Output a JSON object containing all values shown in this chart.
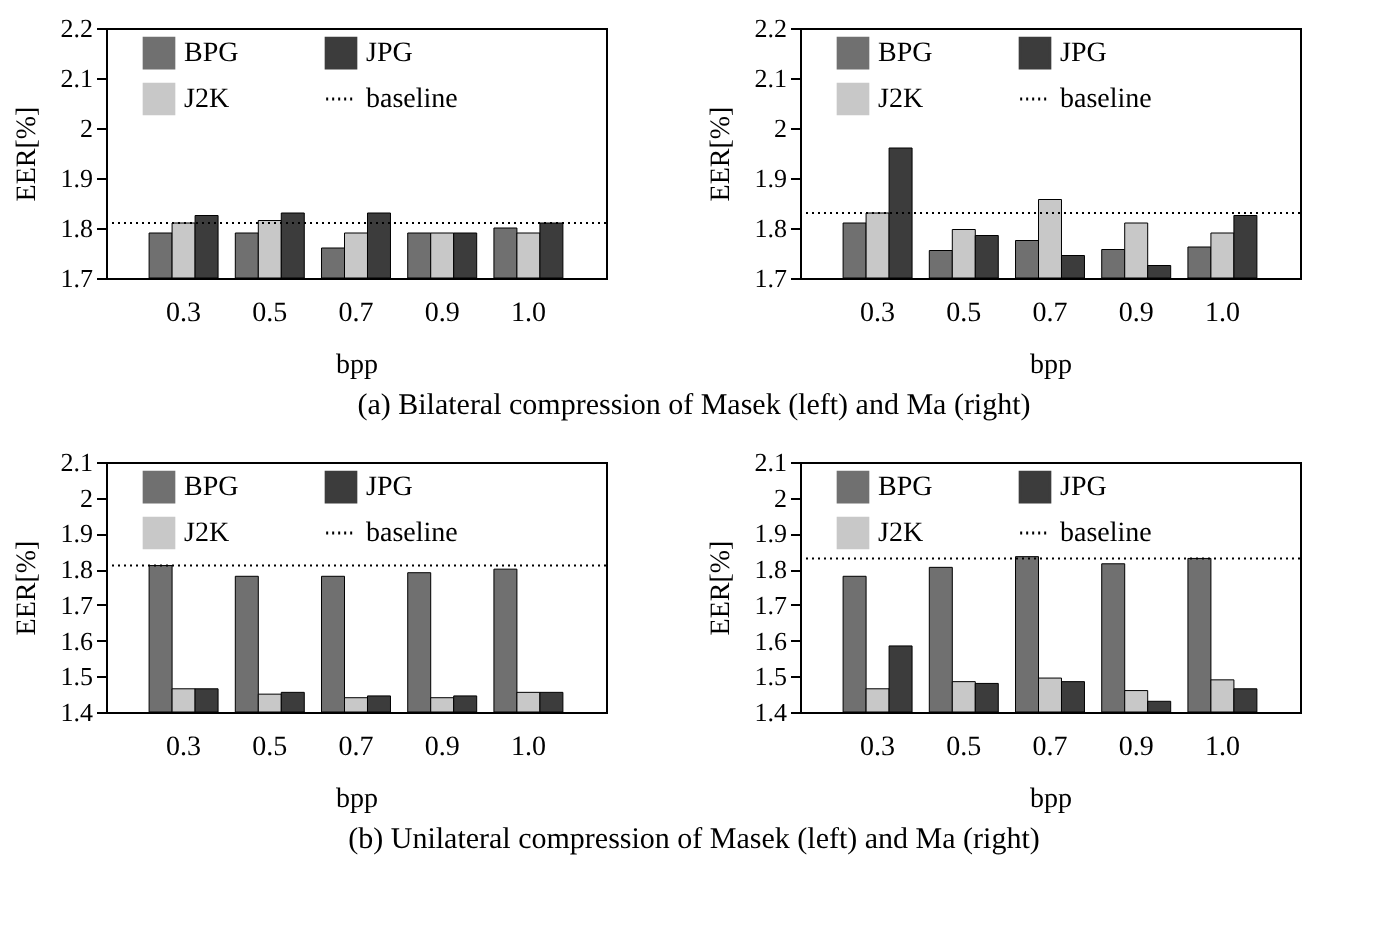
{
  "chart_data": [
    {
      "type": "bar",
      "xlabel": "bpp",
      "ylabel": "EER[%]",
      "categories": [
        "0.3",
        "0.5",
        "0.7",
        "0.9",
        "1.0"
      ],
      "ylim": [
        1.7,
        2.2
      ],
      "yticks": [
        1.7,
        1.8,
        1.9,
        2,
        2.1,
        2.2
      ],
      "legend": "top",
      "grid": false,
      "series": [
        {
          "name": "BPG",
          "color": "#707070",
          "values": [
            1.79,
            1.79,
            1.76,
            1.79,
            1.8
          ]
        },
        {
          "name": "J2K",
          "color": "#c8c8c8",
          "values": [
            1.81,
            1.815,
            1.79,
            1.79,
            1.79
          ]
        },
        {
          "name": "JPG",
          "color": "#3c3c3c",
          "values": [
            1.825,
            1.83,
            1.83,
            1.79,
            1.81
          ]
        }
      ],
      "ref_lines": [
        {
          "axis": "y",
          "value": 1.81,
          "label": "baseline",
          "color": "#000000",
          "line_style": "dotted"
        }
      ],
      "annotations": [
        "(a) Bilateral compression of Masek (left) and Ma (right)"
      ]
    },
    {
      "type": "bar",
      "xlabel": "bpp",
      "ylabel": "EER[%]",
      "categories": [
        "0.3",
        "0.5",
        "0.7",
        "0.9",
        "1.0"
      ],
      "ylim": [
        1.7,
        2.2
      ],
      "yticks": [
        1.7,
        1.8,
        1.9,
        2,
        2.1,
        2.2
      ],
      "legend": "top",
      "grid": false,
      "series": [
        {
          "name": "BPG",
          "color": "#707070",
          "values": [
            1.81,
            1.755,
            1.775,
            1.757,
            1.762
          ]
        },
        {
          "name": "J2K",
          "color": "#c8c8c8",
          "values": [
            1.83,
            1.797,
            1.857,
            1.81,
            1.79
          ]
        },
        {
          "name": "JPG",
          "color": "#3c3c3c",
          "values": [
            1.96,
            1.785,
            1.745,
            1.725,
            1.825
          ]
        }
      ],
      "ref_lines": [
        {
          "axis": "y",
          "value": 1.83,
          "label": "baseline",
          "color": "#000000",
          "line_style": "dotted"
        }
      ]
    },
    {
      "type": "bar",
      "xlabel": "bpp",
      "ylabel": "EER[%]",
      "categories": [
        "0.3",
        "0.5",
        "0.7",
        "0.9",
        "1.0"
      ],
      "ylim": [
        1.4,
        2.1
      ],
      "yticks": [
        1.4,
        1.5,
        1.6,
        1.7,
        1.8,
        1.9,
        2,
        2.1
      ],
      "legend": "top",
      "grid": false,
      "series": [
        {
          "name": "BPG",
          "color": "#707070",
          "values": [
            1.81,
            1.78,
            1.78,
            1.79,
            1.8
          ]
        },
        {
          "name": "J2K",
          "color": "#c8c8c8",
          "values": [
            1.465,
            1.45,
            1.44,
            1.44,
            1.455
          ]
        },
        {
          "name": "JPG",
          "color": "#3c3c3c",
          "values": [
            1.465,
            1.455,
            1.445,
            1.445,
            1.455
          ]
        }
      ],
      "ref_lines": [
        {
          "axis": "y",
          "value": 1.81,
          "label": "baseline",
          "color": "#000000",
          "line_style": "dotted"
        }
      ],
      "annotations": [
        "(b) Unilateral compression of Masek (left) and Ma (right)"
      ]
    },
    {
      "type": "bar",
      "xlabel": "bpp",
      "ylabel": "EER[%]",
      "categories": [
        "0.3",
        "0.5",
        "0.7",
        "0.9",
        "1.0"
      ],
      "ylim": [
        1.4,
        2.1
      ],
      "yticks": [
        1.4,
        1.5,
        1.6,
        1.7,
        1.8,
        1.9,
        2,
        2.1
      ],
      "legend": "top",
      "grid": false,
      "series": [
        {
          "name": "BPG",
          "color": "#707070",
          "values": [
            1.78,
            1.805,
            1.835,
            1.815,
            1.83
          ]
        },
        {
          "name": "J2K",
          "color": "#c8c8c8",
          "values": [
            1.465,
            1.485,
            1.495,
            1.46,
            1.49
          ]
        },
        {
          "name": "JPG",
          "color": "#3c3c3c",
          "values": [
            1.585,
            1.48,
            1.485,
            1.43,
            1.465
          ]
        }
      ],
      "ref_lines": [
        {
          "axis": "y",
          "value": 1.83,
          "label": "baseline",
          "color": "#000000",
          "line_style": "dotted"
        }
      ]
    }
  ]
}
